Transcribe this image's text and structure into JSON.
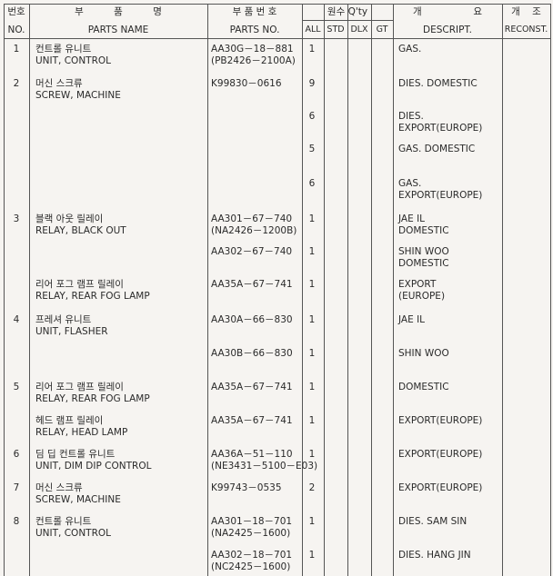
{
  "header": {
    "no_ko": "번호",
    "no_en": "NO.",
    "name_ko": "부          품          명",
    "name_en": "PARTS NAME",
    "partno_ko": "부 품 번 호",
    "partno_en": "PARTS NO.",
    "qty": "원수 Q'ty",
    "all": "ALL",
    "std": "STD",
    "dlx": "DLX",
    "gt": "GT",
    "desc_ko": "개                 요",
    "desc_en": "DESCRIPT.",
    "recon_ko": "개    조",
    "recon_en": "RECONST."
  },
  "rows": [
    {
      "no": "1",
      "name_ko": "컨트롤 유니트",
      "name_en": "UNIT, CONTROL",
      "part": "AA30G－18－881",
      "part2": "(PB2426－2100A)",
      "qty": "1",
      "desc": "GAS.",
      "desc2": ""
    },
    {
      "no": "2",
      "name_ko": "머신 스크류",
      "name_en": "SCREW, MACHINE",
      "part": "K99830－0616",
      "part2": "",
      "qty": "9",
      "desc": "DIES. DOMESTIC",
      "desc2": ""
    },
    {
      "no": "",
      "name_ko": "",
      "name_en": "",
      "part": "",
      "part2": "",
      "qty": "6",
      "desc": "DIES.",
      "desc2": "EXPORT(EUROPE)"
    },
    {
      "no": "",
      "name_ko": "",
      "name_en": "",
      "part": "",
      "part2": "",
      "qty": "5",
      "desc": "GAS. DOMESTIC",
      "desc2": ""
    },
    {
      "no": "",
      "name_ko": "",
      "name_en": "",
      "part": "",
      "part2": "",
      "qty": "6",
      "desc": "GAS.",
      "desc2": "EXPORT(EUROPE)"
    },
    {
      "no": "3",
      "name_ko": "블랙 아웃 릴레이",
      "name_en": "RELAY, BLACK OUT",
      "part": "AA301－67－740",
      "part2": "(NA2426－1200B)",
      "qty": "1",
      "desc": "JAE IL",
      "desc2": "DOMESTIC"
    },
    {
      "no": "",
      "name_ko": "",
      "name_en": "",
      "part": "AA302－67－740",
      "part2": "",
      "qty": "1",
      "desc": "SHIN WOO",
      "desc2": "DOMESTIC"
    },
    {
      "no": "",
      "name_ko": "리어 포그 램프 릴레이",
      "name_en": "RELAY, REAR FOG LAMP",
      "part": "AA35A－67－741",
      "part2": "",
      "qty": "1",
      "desc": "EXPORT",
      "desc2": "(EUROPE)"
    },
    {
      "no": "4",
      "name_ko": "프레셔 유니트",
      "name_en": "UNIT, FLASHER",
      "part": "AA30A－66－830",
      "part2": "",
      "qty": "1",
      "desc": "JAE IL",
      "desc2": ""
    },
    {
      "no": "",
      "name_ko": "",
      "name_en": "",
      "part": "AA30B－66－830",
      "part2": "",
      "qty": "1",
      "desc": "SHIN WOO",
      "desc2": ""
    },
    {
      "no": "5",
      "name_ko": "리어 포그 램프 릴레이",
      "name_en": "RELAY, REAR FOG LAMP",
      "part": "AA35A－67－741",
      "part2": "",
      "qty": "1",
      "desc": "DOMESTIC",
      "desc2": ""
    },
    {
      "no": "",
      "name_ko": "헤드 램프 릴레이",
      "name_en": "RELAY, HEAD LAMP",
      "part": "AA35A－67－741",
      "part2": "",
      "qty": "1",
      "desc": "EXPORT(EUROPE)",
      "desc2": ""
    },
    {
      "no": "6",
      "name_ko": "딤 딥 컨트롤 유니트",
      "name_en": "UNIT, DIM DIP CONTROL",
      "part": "AA36A－51－110",
      "part2": "(NE3431－5100－E03)",
      "qty": "1",
      "desc": "EXPORT(EUROPE)",
      "desc2": ""
    },
    {
      "no": "7",
      "name_ko": "머신 스크류",
      "name_en": "SCREW, MACHINE",
      "part": "K99743－0535",
      "part2": "",
      "qty": "2",
      "desc": "EXPORT(EUROPE)",
      "desc2": ""
    },
    {
      "no": "8",
      "name_ko": "컨트롤 유니트",
      "name_en": "UNIT, CONTROL",
      "part": "AA301－18－701",
      "part2": "(NA2425－1600)",
      "qty": "1",
      "desc": "DIES. SAM SIN",
      "desc2": ""
    },
    {
      "no": "",
      "name_ko": "",
      "name_en": "",
      "part": "AA302－18－701",
      "part2": "(NC2425－1600)",
      "qty": "1",
      "desc": "DIES. HANG JIN",
      "desc2": ""
    }
  ]
}
